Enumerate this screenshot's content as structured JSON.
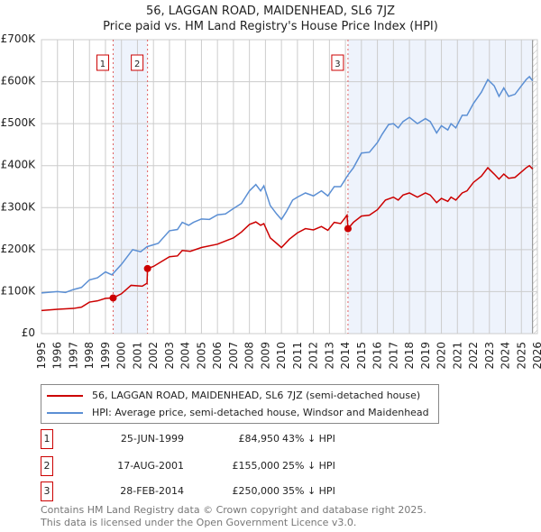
{
  "title": "56, LAGGAN ROAD, MAIDENHEAD, SL6 7JZ",
  "subtitle": "Price paid vs. HM Land Registry's House Price Index (HPI)",
  "chart_data": {
    "type": "line",
    "title": "56, LAGGAN ROAD, MAIDENHEAD, SL6 7JZ",
    "subtitle": "Price paid vs. HM Land Registry's House Price Index (HPI)",
    "xlim": [
      1995,
      2026
    ],
    "ylim": [
      0,
      700000
    ],
    "yticks": [
      {
        "v": 0,
        "label": "£0"
      },
      {
        "v": 100000,
        "label": "£100K"
      },
      {
        "v": 200000,
        "label": "£200K"
      },
      {
        "v": 300000,
        "label": "£300K"
      },
      {
        "v": 400000,
        "label": "£400K"
      },
      {
        "v": 500000,
        "label": "£500K"
      },
      {
        "v": 600000,
        "label": "£600K"
      },
      {
        "v": 700000,
        "label": "£700K"
      }
    ],
    "xticks": [
      "1995",
      "1996",
      "1997",
      "1998",
      "1999",
      "2000",
      "2001",
      "2002",
      "2003",
      "2004",
      "2005",
      "2006",
      "2007",
      "2008",
      "2009",
      "2010",
      "2011",
      "2012",
      "2013",
      "2014",
      "2015",
      "2016",
      "2017",
      "2018",
      "2019",
      "2020",
      "2021",
      "2022",
      "2023",
      "2024",
      "2025",
      "2026"
    ],
    "grid": true,
    "series": [
      {
        "name": "56, LAGGAN ROAD, MAIDENHEAD, SL6 7JZ (semi-detached house)",
        "color": "#cc0000",
        "points": [
          [
            1995,
            55
          ],
          [
            1996,
            58
          ],
          [
            1997,
            60
          ],
          [
            1997.5,
            63
          ],
          [
            1998,
            75
          ],
          [
            1998.5,
            78
          ],
          [
            1999,
            84
          ],
          [
            1999.48,
            85
          ],
          [
            2000,
            95
          ],
          [
            2000.6,
            115
          ],
          [
            2001.3,
            113
          ],
          [
            2001.6,
            120
          ],
          [
            2001.63,
            155
          ],
          [
            2002,
            160
          ],
          [
            2003,
            183
          ],
          [
            2003.5,
            185
          ],
          [
            2003.8,
            198
          ],
          [
            2004.3,
            196
          ],
          [
            2005,
            205
          ],
          [
            2006,
            213
          ],
          [
            2007,
            228
          ],
          [
            2007.5,
            242
          ],
          [
            2008,
            260
          ],
          [
            2008.4,
            266
          ],
          [
            2008.7,
            258
          ],
          [
            2008.9,
            262
          ],
          [
            2009.3,
            228
          ],
          [
            2009.7,
            215
          ],
          [
            2010,
            205
          ],
          [
            2010.5,
            225
          ],
          [
            2011,
            240
          ],
          [
            2011.5,
            250
          ],
          [
            2012,
            247
          ],
          [
            2012.5,
            255
          ],
          [
            2012.9,
            246
          ],
          [
            2013.3,
            265
          ],
          [
            2013.7,
            262
          ],
          [
            2014.1,
            282
          ],
          [
            2014.16,
            250
          ],
          [
            2014.5,
            265
          ],
          [
            2015,
            280
          ],
          [
            2015.5,
            282
          ],
          [
            2016,
            295
          ],
          [
            2016.5,
            318
          ],
          [
            2017,
            325
          ],
          [
            2017.3,
            318
          ],
          [
            2017.6,
            330
          ],
          [
            2018,
            335
          ],
          [
            2018.5,
            325
          ],
          [
            2019,
            335
          ],
          [
            2019.3,
            330
          ],
          [
            2019.7,
            312
          ],
          [
            2020,
            322
          ],
          [
            2020.4,
            315
          ],
          [
            2020.6,
            325
          ],
          [
            2020.9,
            318
          ],
          [
            2021.3,
            335
          ],
          [
            2021.6,
            340
          ],
          [
            2022,
            360
          ],
          [
            2022.5,
            375
          ],
          [
            2022.9,
            395
          ],
          [
            2023.3,
            380
          ],
          [
            2023.6,
            368
          ],
          [
            2023.9,
            380
          ],
          [
            2024.2,
            370
          ],
          [
            2024.6,
            372
          ],
          [
            2025,
            385
          ],
          [
            2025.3,
            395
          ],
          [
            2025.5,
            400
          ],
          [
            2025.7,
            392
          ]
        ]
      },
      {
        "name": "HPI: Average price, semi-detached house, Windsor and Maidenhead",
        "color": "#5b8fd4",
        "points": [
          [
            1995,
            97
          ],
          [
            1996,
            100
          ],
          [
            1996.5,
            98
          ],
          [
            1997,
            105
          ],
          [
            1997.5,
            110
          ],
          [
            1998,
            128
          ],
          [
            1998.5,
            133
          ],
          [
            1999,
            147
          ],
          [
            1999.4,
            140
          ],
          [
            2000,
            165
          ],
          [
            2000.7,
            200
          ],
          [
            2001.2,
            195
          ],
          [
            2001.6,
            207
          ],
          [
            2002.3,
            215
          ],
          [
            2003,
            245
          ],
          [
            2003.5,
            248
          ],
          [
            2003.8,
            265
          ],
          [
            2004.2,
            258
          ],
          [
            2004.5,
            265
          ],
          [
            2005,
            273
          ],
          [
            2005.5,
            272
          ],
          [
            2006,
            283
          ],
          [
            2006.5,
            285
          ],
          [
            2007,
            298
          ],
          [
            2007.5,
            310
          ],
          [
            2008,
            340
          ],
          [
            2008.4,
            355
          ],
          [
            2008.7,
            340
          ],
          [
            2008.9,
            352
          ],
          [
            2009.3,
            305
          ],
          [
            2009.7,
            285
          ],
          [
            2010,
            272
          ],
          [
            2010.3,
            290
          ],
          [
            2010.7,
            318
          ],
          [
            2011,
            325
          ],
          [
            2011.5,
            335
          ],
          [
            2012,
            328
          ],
          [
            2012.5,
            340
          ],
          [
            2012.9,
            328
          ],
          [
            2013.3,
            350
          ],
          [
            2013.7,
            350
          ],
          [
            2014.2,
            380
          ],
          [
            2014.5,
            395
          ],
          [
            2015,
            430
          ],
          [
            2015.5,
            432
          ],
          [
            2016,
            455
          ],
          [
            2016.3,
            475
          ],
          [
            2016.7,
            498
          ],
          [
            2017,
            500
          ],
          [
            2017.3,
            490
          ],
          [
            2017.6,
            505
          ],
          [
            2018,
            515
          ],
          [
            2018.5,
            500
          ],
          [
            2019,
            512
          ],
          [
            2019.3,
            505
          ],
          [
            2019.7,
            478
          ],
          [
            2020,
            495
          ],
          [
            2020.4,
            485
          ],
          [
            2020.6,
            500
          ],
          [
            2020.9,
            490
          ],
          [
            2021.3,
            520
          ],
          [
            2021.6,
            520
          ],
          [
            2022,
            548
          ],
          [
            2022.5,
            575
          ],
          [
            2022.9,
            605
          ],
          [
            2023.3,
            590
          ],
          [
            2023.6,
            565
          ],
          [
            2023.9,
            585
          ],
          [
            2024.2,
            565
          ],
          [
            2024.6,
            570
          ],
          [
            2025,
            590
          ],
          [
            2025.3,
            605
          ],
          [
            2025.5,
            612
          ],
          [
            2025.7,
            602
          ]
        ]
      }
    ],
    "point_units": "thousands GBP",
    "sales": [
      {
        "label": "1",
        "year": 1999.48,
        "price": 84950,
        "date": "25-JUN-1999",
        "price_text": "£84,950",
        "hpi": "43% ↓ HPI"
      },
      {
        "label": "2",
        "year": 2001.63,
        "price": 155000,
        "date": "17-AUG-2001",
        "price_text": "£155,000",
        "hpi": "25% ↓ HPI"
      },
      {
        "label": "3",
        "year": 2014.16,
        "price": 250000,
        "date": "28-FEB-2014",
        "price_text": "£250,000",
        "hpi": "35% ↓ HPI"
      }
    ],
    "forecast_start": 2025.7
  },
  "footer": [
    "Contains HM Land Registry data © Crown copyright and database right 2025.",
    "This data is licensed under the Open Government Licence v3.0."
  ]
}
